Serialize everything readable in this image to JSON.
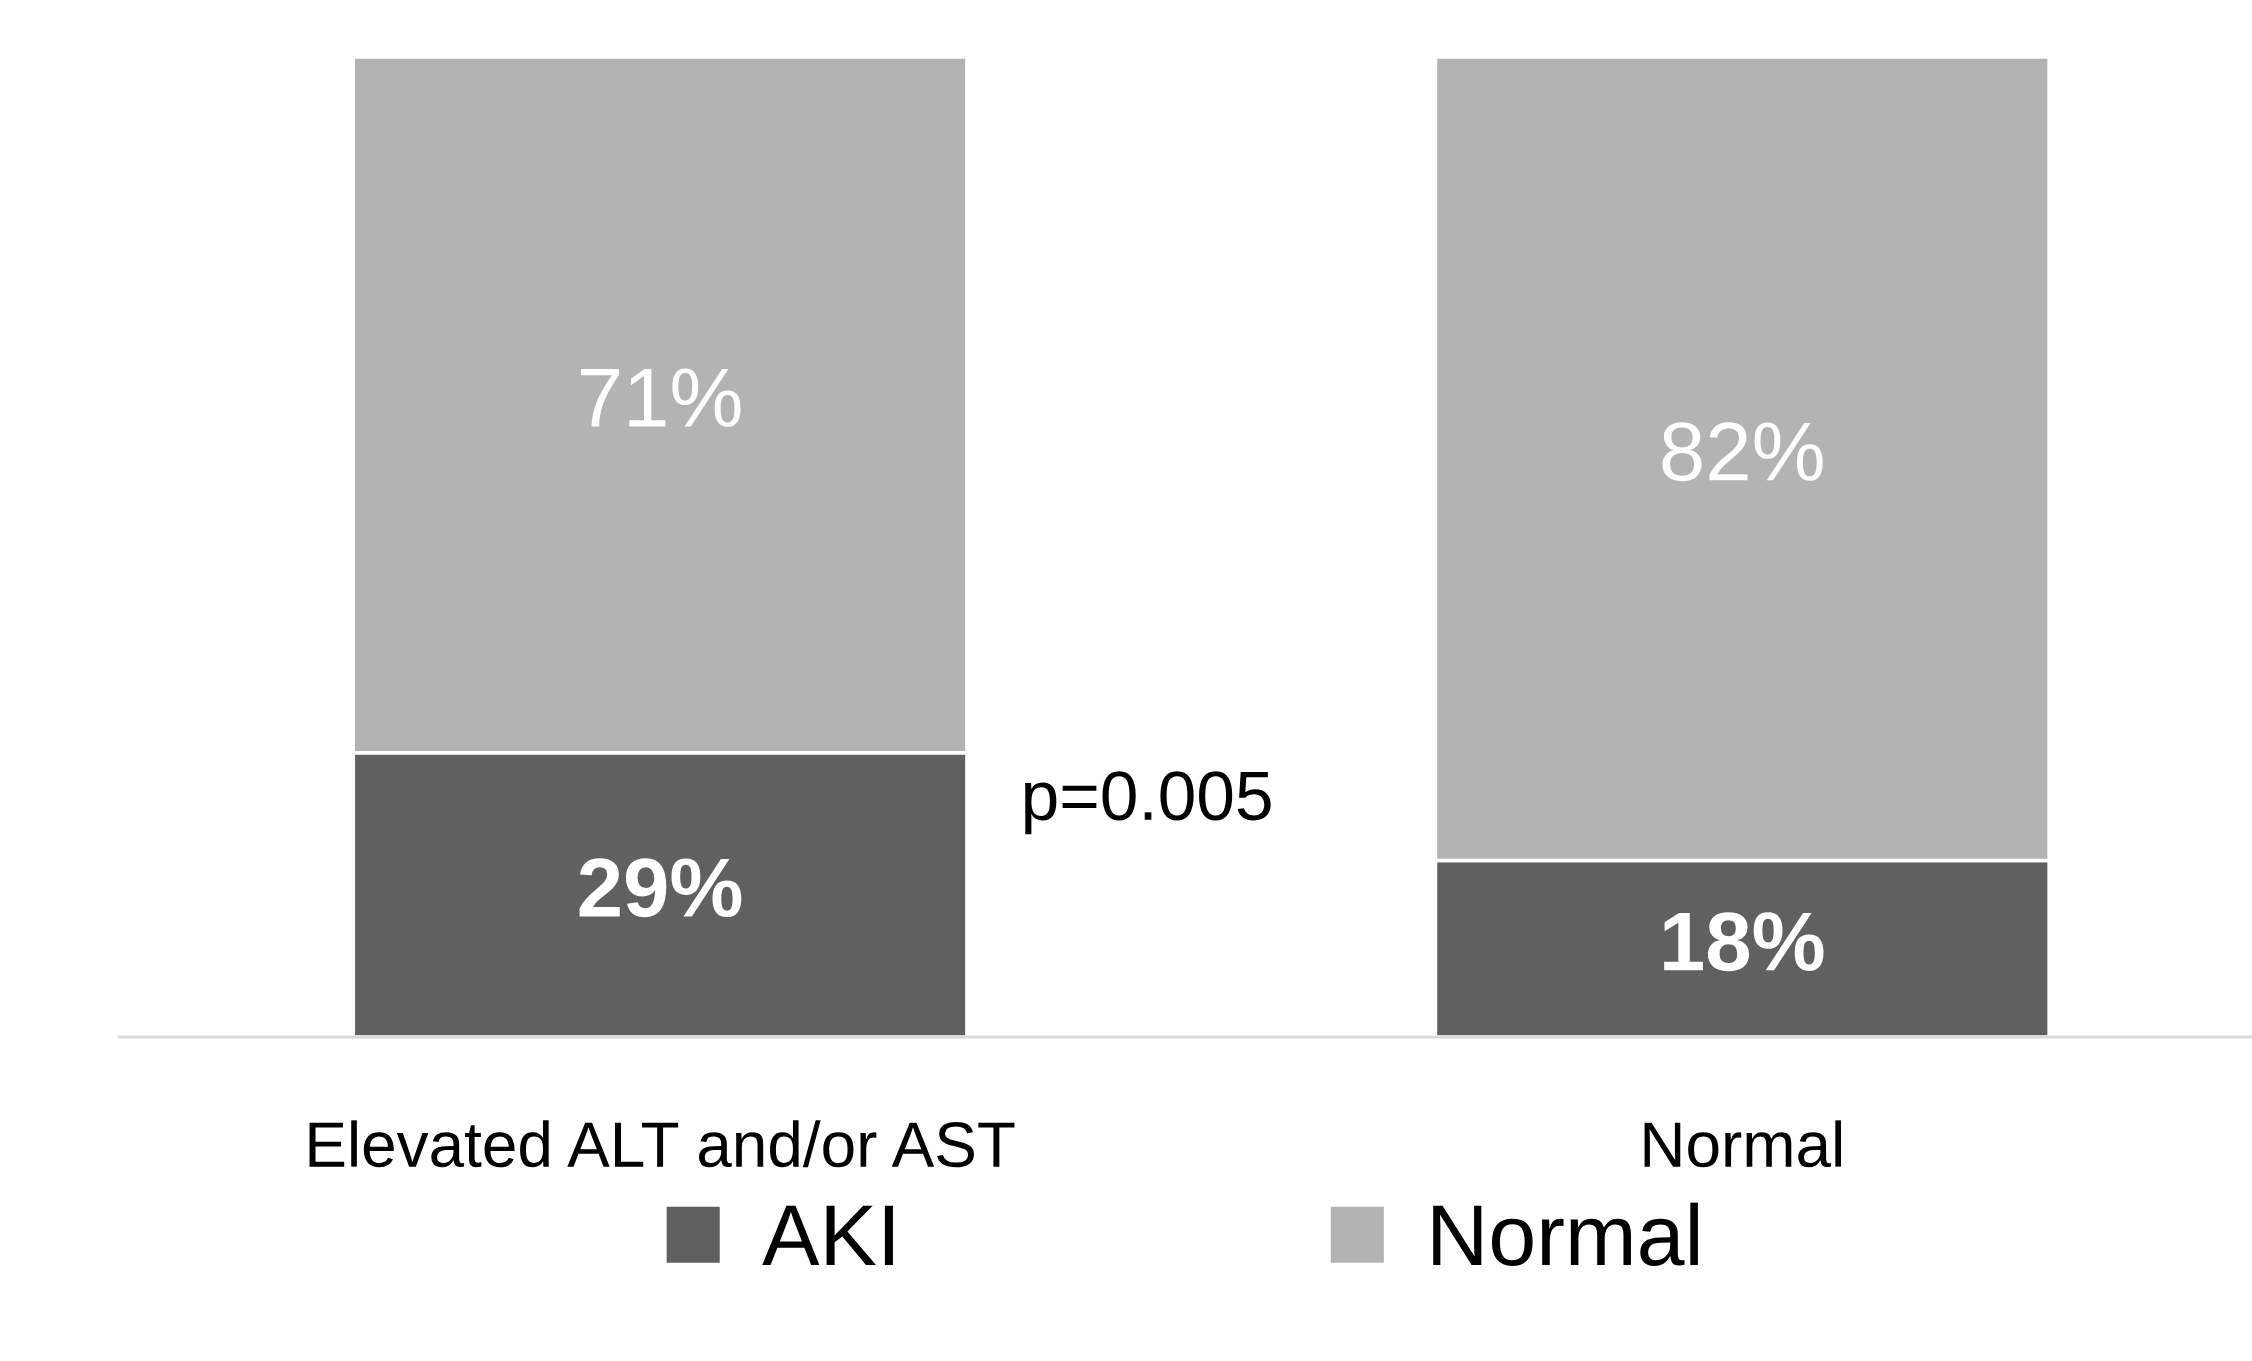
{
  "chart_data": {
    "type": "bar",
    "stacked": true,
    "categories": [
      "Elevated ALT and/or AST",
      "Normal"
    ],
    "series": [
      {
        "name": "AKI",
        "color": "#606060",
        "values": [
          29,
          18
        ],
        "value_labels": [
          "29%",
          "18%"
        ]
      },
      {
        "name": "Normal",
        "color": "#b3b3b3",
        "values": [
          71,
          82
        ],
        "value_labels": [
          "71%",
          "82%"
        ]
      }
    ],
    "annotations": [
      "p=0.005"
    ],
    "legend": "bottom",
    "grid": false
  }
}
